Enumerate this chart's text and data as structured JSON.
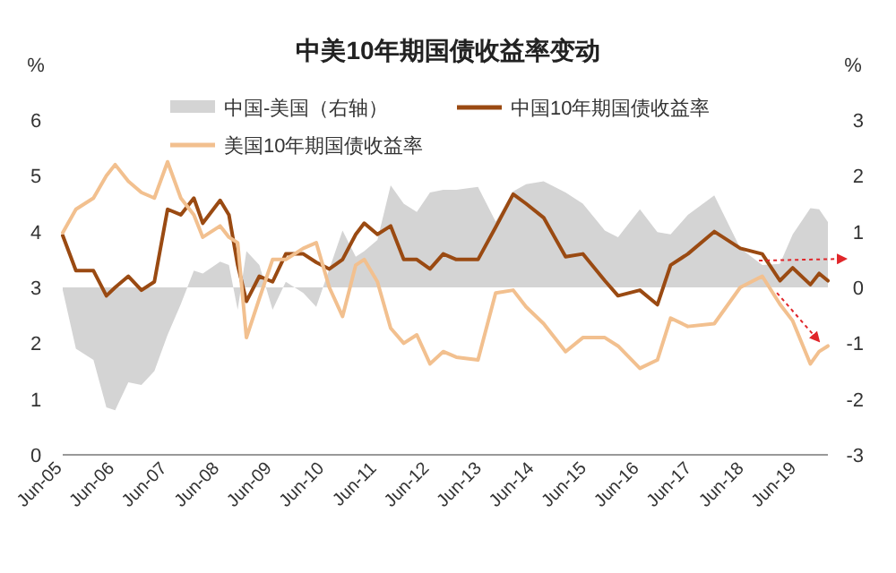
{
  "chart_data": {
    "type": "line",
    "title": "中美10年期国债收益率变动",
    "ylabel": "%",
    "y2label": "%",
    "legend": "top",
    "grid": false,
    "x": [
      "2005-06",
      "2005-09",
      "2006-01",
      "2006-04",
      "2006-06",
      "2006-09",
      "2006-12",
      "2007-03",
      "2007-06",
      "2007-09",
      "2007-12",
      "2008-02",
      "2008-06",
      "2008-08",
      "2008-10",
      "2008-12",
      "2009-03",
      "2009-06",
      "2009-09",
      "2010-01",
      "2010-04",
      "2010-07",
      "2010-10",
      "2011-01",
      "2011-03",
      "2011-06",
      "2011-09",
      "2011-12",
      "2012-03",
      "2012-06",
      "2012-09",
      "2012-12",
      "2013-05",
      "2013-09",
      "2014-01",
      "2014-04",
      "2014-08",
      "2015-01",
      "2015-05",
      "2015-10",
      "2016-01",
      "2016-06",
      "2016-10",
      "2017-01",
      "2017-05",
      "2017-11",
      "2018-05",
      "2018-10",
      "2019-02",
      "2019-05",
      "2019-09",
      "2019-11",
      "2020-01"
    ],
    "series": [
      {
        "name": "中国-美国（右轴）",
        "type": "area",
        "axis": "y2",
        "color": "#d4d4d4",
        "values": [
          -0.05,
          -1.1,
          -1.3,
          -2.15,
          -2.2,
          -1.7,
          -1.75,
          -1.5,
          -0.85,
          -0.3,
          0.3,
          0.25,
          0.46,
          0.4,
          -0.4,
          0.65,
          0.4,
          -0.4,
          0.1,
          -0.1,
          -0.35,
          0.33,
          1.02,
          0.55,
          0.65,
          0.85,
          1.83,
          1.5,
          1.35,
          1.7,
          1.75,
          1.75,
          1.8,
          1.18,
          1.72,
          1.85,
          1.9,
          1.7,
          1.5,
          1.02,
          0.9,
          1.4,
          0.99,
          0.95,
          1.3,
          1.65,
          0.7,
          0.4,
          0.42,
          0.95,
          1.42,
          1.4,
          1.17
        ]
      },
      {
        "name": "中国10年期国债收益率",
        "color": "#9a4a12",
        "values": [
          3.93,
          3.3,
          3.3,
          2.85,
          3.0,
          3.2,
          2.95,
          3.1,
          4.4,
          4.3,
          4.6,
          4.15,
          4.56,
          4.3,
          3.4,
          2.75,
          3.2,
          3.1,
          3.6,
          3.6,
          3.45,
          3.33,
          3.5,
          3.95,
          4.15,
          3.95,
          4.1,
          3.5,
          3.5,
          3.33,
          3.6,
          3.5,
          3.5,
          4.08,
          4.67,
          4.5,
          4.25,
          3.55,
          3.6,
          3.12,
          2.85,
          2.95,
          2.69,
          3.4,
          3.6,
          4.0,
          3.7,
          3.6,
          3.12,
          3.35,
          3.05,
          3.25,
          3.12
        ]
      },
      {
        "name": "美国10年期国债收益率",
        "color": "#f2c08f",
        "values": [
          3.98,
          4.4,
          4.6,
          5.0,
          5.2,
          4.9,
          4.7,
          4.6,
          5.25,
          4.6,
          4.3,
          3.9,
          4.1,
          3.9,
          3.8,
          2.1,
          2.8,
          3.5,
          3.5,
          3.7,
          3.8,
          3.0,
          2.48,
          3.4,
          3.5,
          3.1,
          2.27,
          2.0,
          2.15,
          1.63,
          1.85,
          1.75,
          1.7,
          2.9,
          2.95,
          2.65,
          2.35,
          1.85,
          2.1,
          2.1,
          1.95,
          1.55,
          1.7,
          2.45,
          2.3,
          2.35,
          3.0,
          3.2,
          2.7,
          2.4,
          1.63,
          1.85,
          1.95
        ]
      }
    ],
    "xlim": [
      "2005-06",
      "2020-01"
    ],
    "xticks": [
      {
        "value": "2005-06",
        "label": "Jun-05"
      },
      {
        "value": "2006-06",
        "label": "Jun-06"
      },
      {
        "value": "2007-06",
        "label": "Jun-07"
      },
      {
        "value": "2008-06",
        "label": "Jun-08"
      },
      {
        "value": "2009-06",
        "label": "Jun-09"
      },
      {
        "value": "2010-06",
        "label": "Jun-10"
      },
      {
        "value": "2011-06",
        "label": "Jun-11"
      },
      {
        "value": "2012-06",
        "label": "Jun-12"
      },
      {
        "value": "2013-06",
        "label": "Jun-13"
      },
      {
        "value": "2014-06",
        "label": "Jun-14"
      },
      {
        "value": "2015-06",
        "label": "Jun-15"
      },
      {
        "value": "2016-06",
        "label": "Jun-16"
      },
      {
        "value": "2017-06",
        "label": "Jun-17"
      },
      {
        "value": "2018-06",
        "label": "Jun-18"
      },
      {
        "value": "2019-06",
        "label": "Jun-19"
      }
    ],
    "ylim": [
      0,
      6
    ],
    "yticks": [
      0,
      1,
      2,
      3,
      4,
      5,
      6
    ],
    "y2lim": [
      -3,
      3
    ],
    "y2ticks": [
      -3,
      -2,
      -1,
      0,
      1,
      2,
      3
    ]
  }
}
